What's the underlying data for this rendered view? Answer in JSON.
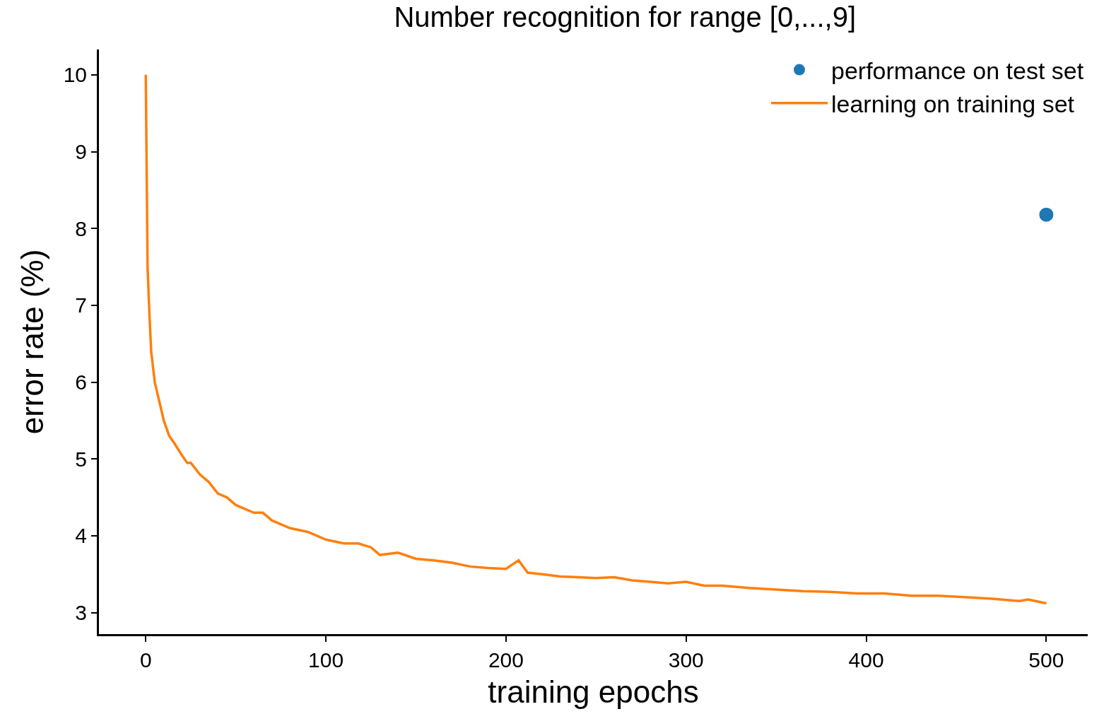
{
  "chart_data": {
    "type": "line",
    "title": "Number recognition for range [0,...,9]",
    "xlabel": "training epochs",
    "ylabel": "error rate (%)",
    "series": [
      {
        "name": "performance on test set",
        "type": "scatter",
        "color": "#1f77b4",
        "marker": "circle",
        "x": [
          500
        ],
        "values": [
          8.18
        ]
      },
      {
        "name": "learning on training set",
        "color": "#ff7f0e",
        "marker": "none",
        "line_style": "solid",
        "x": [
          0,
          1,
          2,
          3,
          5,
          8,
          10,
          13,
          16,
          20,
          23,
          25,
          30,
          35,
          40,
          45,
          50,
          55,
          60,
          65,
          70,
          75,
          80,
          90,
          100,
          110,
          118,
          125,
          130,
          140,
          150,
          160,
          170,
          180,
          190,
          200,
          207,
          212,
          220,
          230,
          240,
          250,
          260,
          270,
          280,
          290,
          300,
          310,
          320,
          335,
          350,
          365,
          380,
          395,
          410,
          425,
          440,
          455,
          470,
          485,
          490,
          500
        ],
        "values": [
          10,
          7.5,
          6.9,
          6.4,
          6.0,
          5.7,
          5.5,
          5.3,
          5.2,
          5.05,
          4.95,
          4.95,
          4.8,
          4.7,
          4.55,
          4.5,
          4.4,
          4.35,
          4.3,
          4.3,
          4.2,
          4.15,
          4.1,
          4.05,
          3.95,
          3.9,
          3.9,
          3.85,
          3.75,
          3.78,
          3.7,
          3.68,
          3.65,
          3.6,
          3.58,
          3.57,
          3.68,
          3.52,
          3.5,
          3.47,
          3.46,
          3.45,
          3.46,
          3.42,
          3.4,
          3.38,
          3.4,
          3.35,
          3.35,
          3.32,
          3.3,
          3.28,
          3.27,
          3.25,
          3.25,
          3.22,
          3.22,
          3.2,
          3.18,
          3.15,
          3.17,
          3.12
        ]
      }
    ],
    "xlim": [
      -26,
      523
    ],
    "ylim": [
      2.72,
      10.33
    ],
    "xticks": [
      0,
      100,
      200,
      300,
      400,
      500
    ],
    "yticks": [
      3,
      4,
      5,
      6,
      7,
      8,
      9,
      10
    ],
    "legend": "top right"
  }
}
